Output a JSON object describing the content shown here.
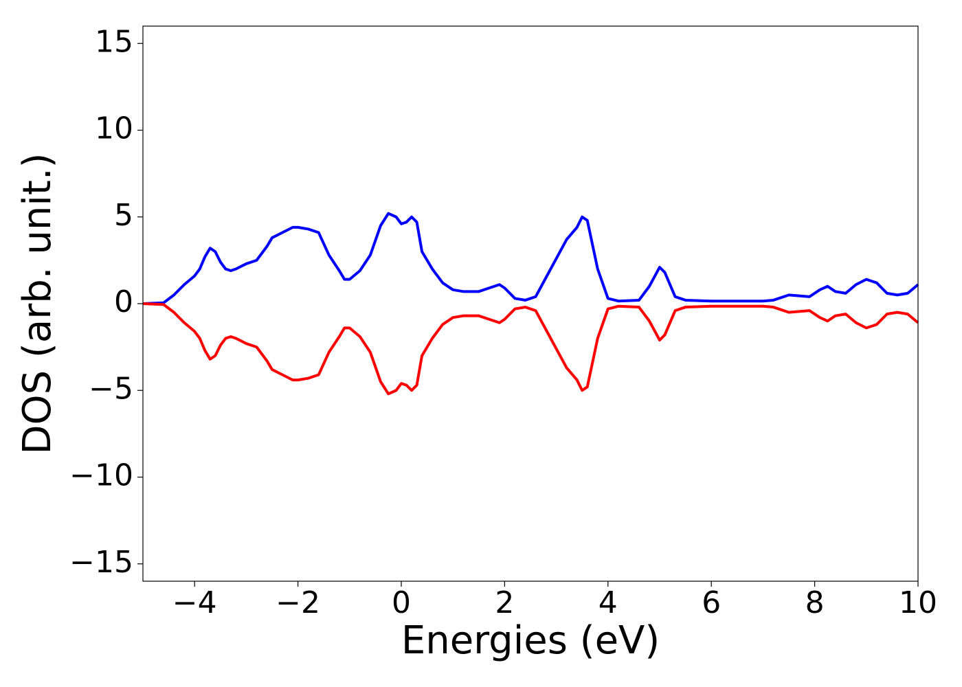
{
  "chart_data": {
    "type": "line",
    "x_label": "Energies (eV)",
    "y_label": "DOS (arb. unit.)",
    "xlim": [
      -5,
      10
    ],
    "ylim": [
      -16,
      16
    ],
    "xticks": [
      {
        "value": -4,
        "label": "−4"
      },
      {
        "value": -2,
        "label": "−2"
      },
      0,
      2,
      4,
      6,
      8,
      10
    ],
    "yticks": [
      {
        "value": -15,
        "label": "−15"
      },
      {
        "value": -10,
        "label": "−10"
      },
      {
        "value": -5,
        "label": "−5"
      },
      0,
      5,
      10,
      15
    ],
    "grid": false,
    "x": [
      -5,
      -4.6,
      -4.4,
      -4.2,
      -4.0,
      -3.9,
      -3.8,
      -3.7,
      -3.6,
      -3.5,
      -3.4,
      -3.3,
      -3.2,
      -3.0,
      -2.8,
      -2.6,
      -2.5,
      -2.3,
      -2.1,
      -2.0,
      -1.8,
      -1.6,
      -1.4,
      -1.2,
      -1.1,
      -1.0,
      -0.8,
      -0.6,
      -0.4,
      -0.25,
      -0.1,
      0,
      0.1,
      0.2,
      0.3,
      0.4,
      0.6,
      0.8,
      1.0,
      1.2,
      1.5,
      1.7,
      1.9,
      2.0,
      2.2,
      2.4,
      2.6,
      2.8,
      3.0,
      3.2,
      3.4,
      3.5,
      3.6,
      3.8,
      4.0,
      4.2,
      4.6,
      4.8,
      5.0,
      5.1,
      5.3,
      5.5,
      6,
      7,
      7.2,
      7.5,
      7.9,
      8.1,
      8.25,
      8.4,
      8.6,
      8.8,
      9.0,
      9.2,
      9.4,
      9.6,
      9.8,
      10
    ],
    "series": [
      {
        "color": "#0000ff",
        "values": [
          0,
          0.05,
          0.5,
          1.1,
          1.6,
          2.0,
          2.7,
          3.2,
          3.0,
          2.4,
          2.0,
          1.9,
          2.0,
          2.3,
          2.5,
          3.3,
          3.8,
          4.1,
          4.4,
          4.4,
          4.3,
          4.1,
          2.8,
          1.9,
          1.4,
          1.4,
          1.9,
          2.8,
          4.5,
          5.2,
          5.0,
          4.6,
          4.7,
          5.0,
          4.7,
          3.0,
          2.0,
          1.2,
          0.8,
          0.7,
          0.7,
          0.9,
          1.1,
          0.9,
          0.3,
          0.2,
          0.4,
          1.5,
          2.6,
          3.7,
          4.4,
          5.0,
          4.8,
          2.0,
          0.3,
          0.15,
          0.2,
          1.0,
          2.1,
          1.8,
          0.4,
          0.2,
          0.15,
          0.15,
          0.2,
          0.5,
          0.4,
          0.8,
          1.0,
          0.7,
          0.6,
          1.1,
          1.4,
          1.2,
          0.6,
          0.5,
          0.6,
          1.1
        ]
      },
      {
        "color": "#ff0000",
        "values": [
          0,
          -0.05,
          -0.5,
          -1.1,
          -1.6,
          -2.0,
          -2.7,
          -3.2,
          -3.0,
          -2.4,
          -2.0,
          -1.9,
          -2.0,
          -2.3,
          -2.5,
          -3.3,
          -3.8,
          -4.1,
          -4.4,
          -4.4,
          -4.3,
          -4.1,
          -2.8,
          -1.9,
          -1.4,
          -1.4,
          -1.9,
          -2.8,
          -4.5,
          -5.2,
          -5.0,
          -4.6,
          -4.7,
          -5.0,
          -4.7,
          -3.0,
          -2.0,
          -1.2,
          -0.8,
          -0.7,
          -0.7,
          -0.9,
          -1.1,
          -0.9,
          -0.3,
          -0.2,
          -0.4,
          -1.5,
          -2.6,
          -3.7,
          -4.4,
          -5.0,
          -4.8,
          -2.0,
          -0.3,
          -0.15,
          -0.2,
          -1.0,
          -2.1,
          -1.8,
          -0.4,
          -0.2,
          -0.15,
          -0.15,
          -0.2,
          -0.5,
          -0.4,
          -0.8,
          -1.0,
          -0.7,
          -0.6,
          -1.1,
          -1.4,
          -1.2,
          -0.6,
          -0.5,
          -0.6,
          -1.1
        ]
      }
    ]
  }
}
